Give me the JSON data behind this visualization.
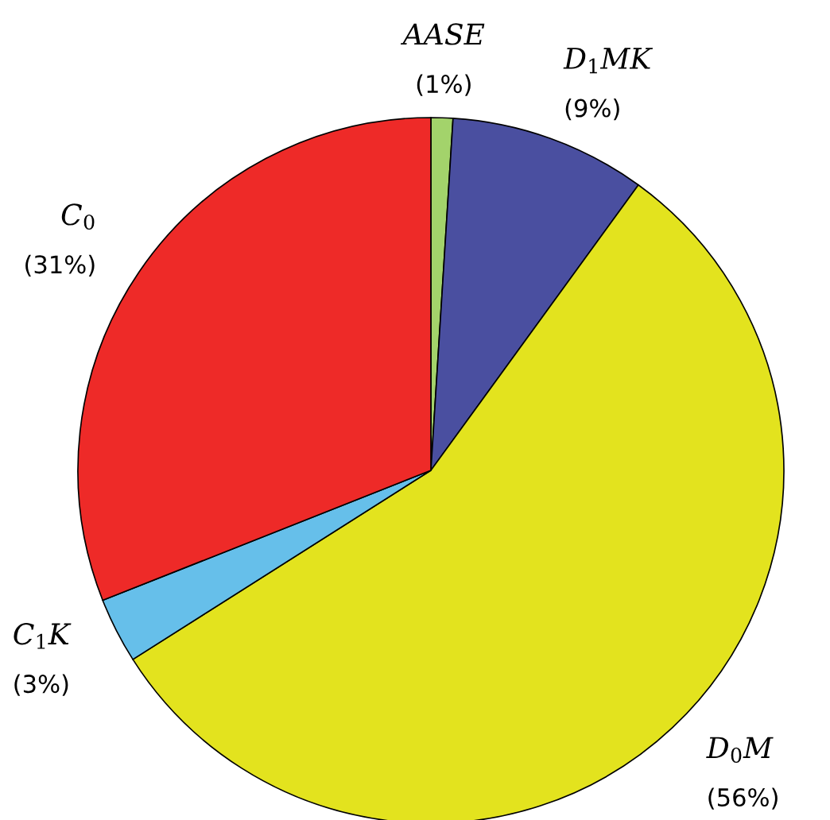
{
  "chart_data": {
    "type": "pie",
    "categories": [
      "AASE",
      "D$_{1}$MK",
      "D$_{0}$M",
      "C$_{1}$K",
      "C$_{0}$"
    ],
    "values": [
      1,
      9,
      56,
      3,
      31
    ],
    "value_labels": [
      "(1%)",
      "(9%)",
      "(56%)",
      "(3%)",
      "(31%)"
    ],
    "colors": [
      "#a3d36b",
      "#4a4fa0",
      "#e3e31e",
      "#66bfea",
      "#ee2a28"
    ]
  }
}
